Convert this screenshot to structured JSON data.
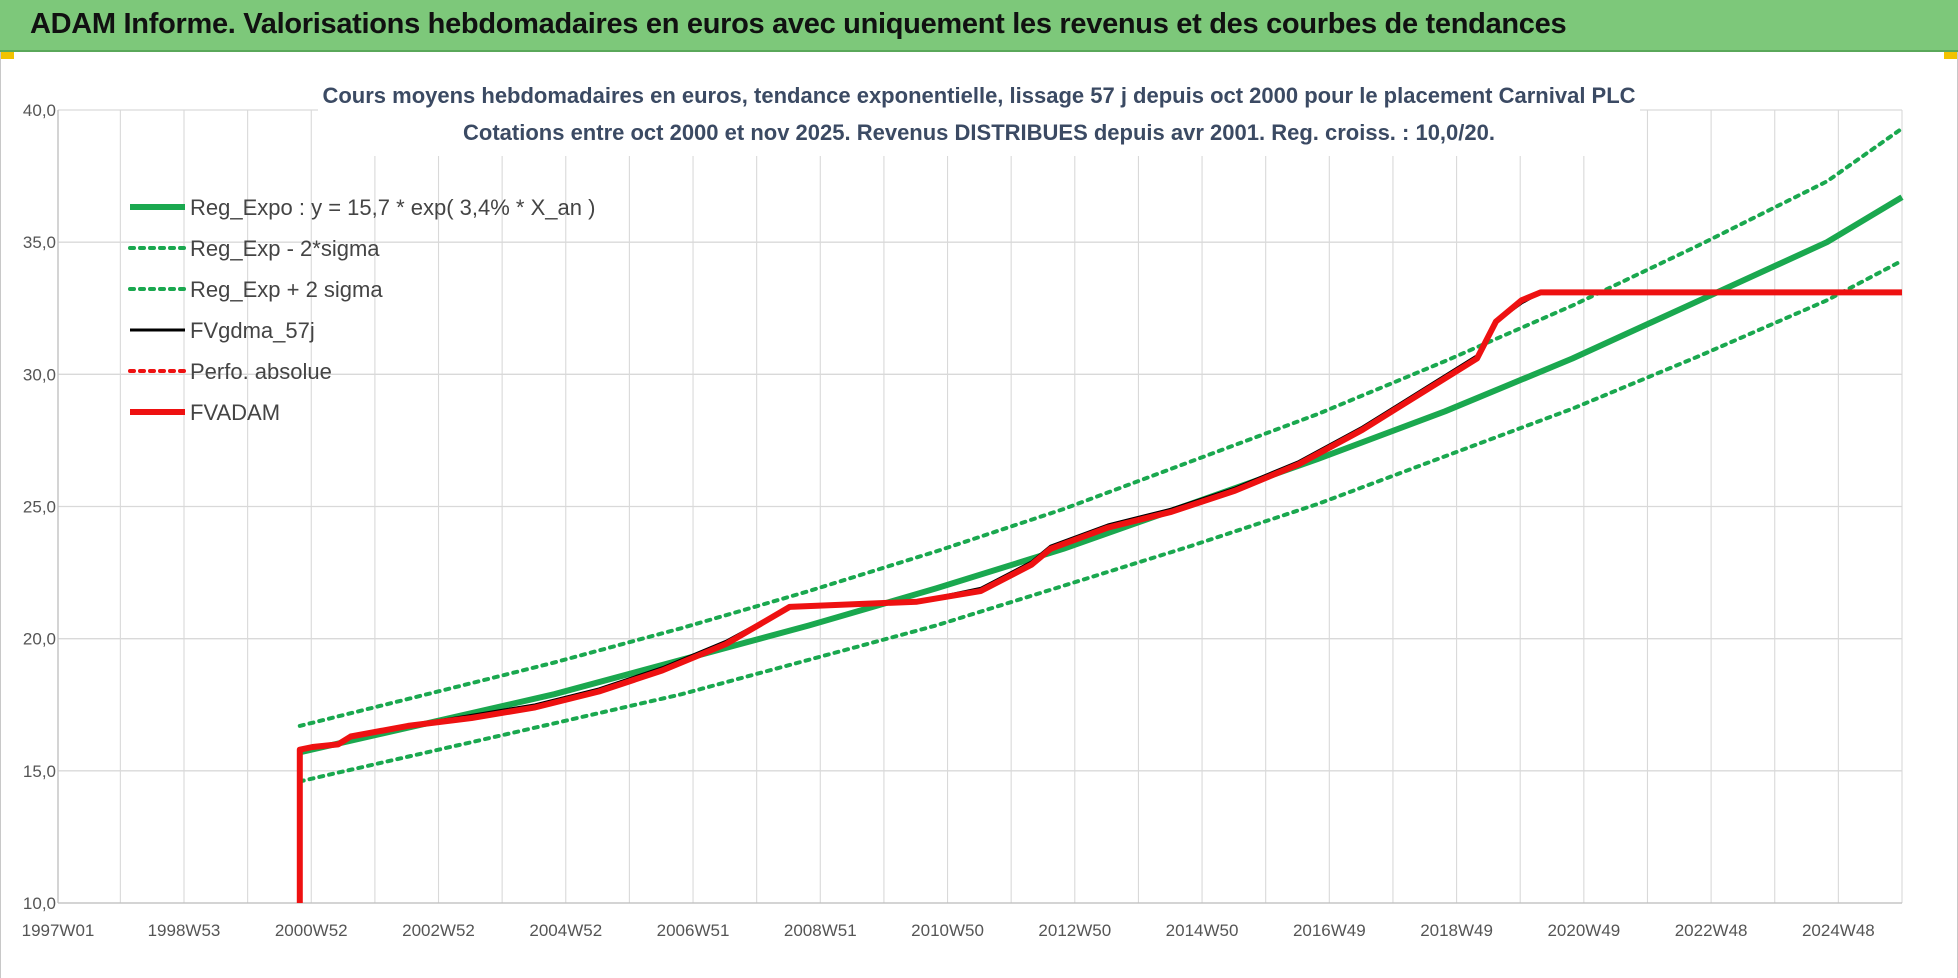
{
  "banner": {
    "title": "ADAM Informe. Valorisations hebdomadaires en euros avec uniquement les revenus et des courbes de tendances"
  },
  "colors": {
    "banner": "#7dc87a",
    "reg": "#1aa84f",
    "fvgdma": "#000000",
    "fvadam": "#ee1111",
    "grid": "#d9d9d9"
  },
  "chart_data": {
    "type": "line",
    "title": "Cours moyens hebdomadaires en euros, tendance exponentielle, lissage 57 j depuis oct 2000 pour le placement Carnival PLC",
    "subtitle": "Cotations entre oct 2000 et nov 2025. Revenus DISTRIBUES depuis avr 2001. Reg. croiss. : 10,0/20.",
    "xlabel": "",
    "ylabel": "",
    "ylim": [
      10,
      40
    ],
    "xlim": [
      1997.0,
      2025.98
    ],
    "grid": true,
    "legend_position": "top-left",
    "y_ticks": [
      "10,0",
      "15,0",
      "20,0",
      "25,0",
      "30,0",
      "35,0",
      "40,0"
    ],
    "x_ticks": [
      {
        "label": "1997W01",
        "x": 1997.0
      },
      {
        "label": "1998W53",
        "x": 1998.98
      },
      {
        "label": "2000W52",
        "x": 2000.98
      },
      {
        "label": "2002W52",
        "x": 2002.98
      },
      {
        "label": "2004W52",
        "x": 2004.98
      },
      {
        "label": "2006W51",
        "x": 2006.98
      },
      {
        "label": "2008W51",
        "x": 2008.98
      },
      {
        "label": "2010W50",
        "x": 2010.98
      },
      {
        "label": "2012W50",
        "x": 2012.98
      },
      {
        "label": "2014W50",
        "x": 2014.98
      },
      {
        "label": "2016W49",
        "x": 2016.98
      },
      {
        "label": "2018W49",
        "x": 2018.98
      },
      {
        "label": "2020W49",
        "x": 2020.98
      },
      {
        "label": "2022W48",
        "x": 2022.98
      },
      {
        "label": "2024W48",
        "x": 2024.98
      }
    ],
    "series": [
      {
        "name": "Reg_Expo : y = 15,7 * exp( 3,4% *  X_an )",
        "style": "solid-thick",
        "color": "#1aa84f",
        "x": [
          2000.8,
          2002.8,
          2004.8,
          2006.8,
          2008.8,
          2010.8,
          2012.8,
          2014.8,
          2016.8,
          2018.8,
          2020.8,
          2022.8,
          2024.8,
          2025.98
        ],
        "y": [
          15.7,
          16.8,
          17.9,
          19.2,
          20.5,
          21.9,
          23.4,
          25.1,
          26.8,
          28.6,
          30.6,
          32.8,
          35.0,
          36.7
        ]
      },
      {
        "name": "Reg_Exp - 2*sigma",
        "style": "dotted",
        "color": "#1aa84f",
        "x": [
          2000.8,
          2002.8,
          2004.8,
          2006.8,
          2008.8,
          2010.8,
          2012.8,
          2014.8,
          2016.8,
          2018.8,
          2020.8,
          2022.8,
          2024.8,
          2025.98
        ],
        "y": [
          14.6,
          15.7,
          16.8,
          17.9,
          19.2,
          20.5,
          22.0,
          23.5,
          25.1,
          26.9,
          28.7,
          30.7,
          32.8,
          34.3
        ]
      },
      {
        "name": "Reg_Exp + 2 sigma",
        "style": "dotted",
        "color": "#1aa84f",
        "x": [
          2000.8,
          2002.8,
          2004.8,
          2006.8,
          2008.8,
          2010.8,
          2012.8,
          2014.8,
          2016.8,
          2018.8,
          2020.8,
          2022.8,
          2024.8,
          2025.98
        ],
        "y": [
          16.7,
          17.9,
          19.1,
          20.4,
          21.8,
          23.3,
          24.9,
          26.7,
          28.5,
          30.5,
          32.6,
          34.9,
          37.3,
          39.3
        ]
      },
      {
        "name": "FVgdma_57j",
        "style": "solid",
        "color": "#000000",
        "x": [
          2000.8,
          2000.8,
          2001.0,
          2001.4,
          2001.6,
          2002.5,
          2003.5,
          2004.5,
          2005.5,
          2006.5,
          2007.5,
          2008.5,
          2009.5,
          2010.5,
          2011.5,
          2012.3,
          2012.6,
          2013.5,
          2014.5,
          2015.5,
          2016.5,
          2017.5,
          2018.5,
          2019.3,
          2019.6,
          2020.0,
          2020.3,
          2025.98
        ],
        "y": [
          10.0,
          15.8,
          15.9,
          16.0,
          16.3,
          16.7,
          17.1,
          17.5,
          18.1,
          18.9,
          19.9,
          21.2,
          21.3,
          21.4,
          21.9,
          22.9,
          23.5,
          24.3,
          24.9,
          25.7,
          26.7,
          28.0,
          29.5,
          30.7,
          32.0,
          32.7,
          33.1,
          33.1
        ]
      },
      {
        "name": "Perfo. absolue",
        "style": "dotted",
        "color": "#ee1111",
        "x": [],
        "y": []
      },
      {
        "name": "FVADAM",
        "style": "solid-thick",
        "color": "#ee1111",
        "x": [
          2000.8,
          2000.8,
          2001.0,
          2001.4,
          2001.6,
          2002.5,
          2003.5,
          2004.5,
          2005.5,
          2006.5,
          2007.5,
          2008.5,
          2009.5,
          2010.5,
          2011.5,
          2012.3,
          2012.6,
          2013.5,
          2014.5,
          2015.5,
          2016.5,
          2017.5,
          2018.5,
          2019.3,
          2019.6,
          2020.0,
          2020.3,
          2025.98
        ],
        "y": [
          10.0,
          15.8,
          15.9,
          16.0,
          16.3,
          16.7,
          17.0,
          17.4,
          18.0,
          18.8,
          19.8,
          21.2,
          21.3,
          21.4,
          21.8,
          22.8,
          23.4,
          24.2,
          24.8,
          25.6,
          26.6,
          27.9,
          29.4,
          30.6,
          32.0,
          32.8,
          33.1,
          33.1
        ]
      }
    ]
  }
}
